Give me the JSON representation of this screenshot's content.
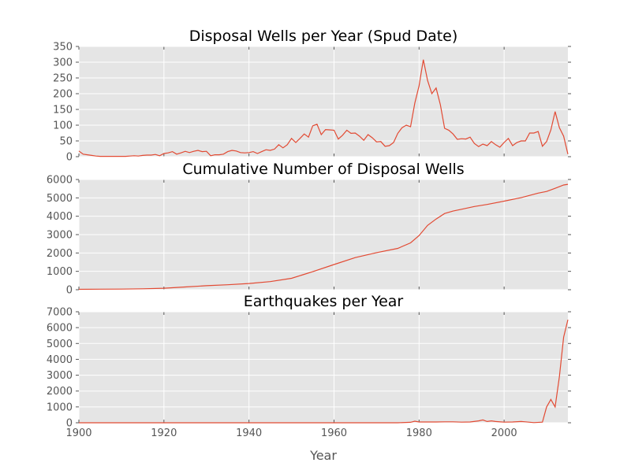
{
  "colors": {
    "background": "#e5e5e5",
    "line": "#e24a33",
    "grid": "#ffffff",
    "tick_text": "#555555"
  },
  "chart_data": [
    {
      "type": "line",
      "title": "Disposal Wells per Year (Spud Date)",
      "xlabel": "",
      "ylabel": "",
      "xlim": [
        1900,
        2015
      ],
      "ylim": [
        0,
        350
      ],
      "yticks": [
        0,
        50,
        100,
        150,
        200,
        250,
        300,
        350
      ],
      "xticks": [
        1900,
        1920,
        1940,
        1960,
        1980,
        2000
      ],
      "show_x_tick_labels": false,
      "grid": true,
      "series": [
        {
          "x": [
            1900,
            1901,
            1902,
            1903,
            1904,
            1905,
            1906,
            1907,
            1908,
            1909,
            1910,
            1911,
            1912,
            1913,
            1914,
            1915,
            1916,
            1917,
            1918,
            1919,
            1920,
            1921,
            1922,
            1923,
            1924,
            1925,
            1926,
            1927,
            1928,
            1929,
            1930,
            1931,
            1932,
            1933,
            1934,
            1935,
            1936,
            1937,
            1938,
            1939,
            1940,
            1941,
            1942,
            1943,
            1944,
            1945,
            1946,
            1947,
            1948,
            1949,
            1950,
            1951,
            1952,
            1953,
            1954,
            1955,
            1956,
            1957,
            1958,
            1959,
            1960,
            1961,
            1962,
            1963,
            1964,
            1965,
            1966,
            1967,
            1968,
            1969,
            1970,
            1971,
            1972,
            1973,
            1974,
            1975,
            1976,
            1977,
            1978,
            1979,
            1980,
            1981,
            1982,
            1983,
            1984,
            1985,
            1986,
            1987,
            1988,
            1989,
            1990,
            1991,
            1992,
            1993,
            1994,
            1995,
            1996,
            1997,
            1998,
            1999,
            2000,
            2001,
            2002,
            2003,
            2004,
            2005,
            2006,
            2007,
            2008,
            2009,
            2010,
            2011,
            2012,
            2013,
            2014,
            2015
          ],
          "y": [
            18,
            8,
            6,
            4,
            2,
            1,
            1,
            1,
            1,
            1,
            1,
            1,
            2,
            3,
            2,
            4,
            5,
            5,
            7,
            3,
            10,
            12,
            16,
            8,
            12,
            17,
            13,
            17,
            20,
            16,
            17,
            3,
            6,
            6,
            8,
            16,
            20,
            18,
            13,
            12,
            13,
            16,
            10,
            16,
            22,
            20,
            24,
            38,
            28,
            38,
            58,
            45,
            58,
            72,
            62,
            98,
            103,
            70,
            86,
            85,
            84,
            56,
            68,
            84,
            74,
            75,
            65,
            52,
            70,
            60,
            47,
            48,
            33,
            35,
            45,
            74,
            92,
            100,
            95,
            170,
            225,
            308,
            242,
            200,
            218,
            165,
            90,
            84,
            72,
            55,
            57,
            56,
            62,
            42,
            32,
            40,
            35,
            48,
            38,
            30,
            45,
            58,
            35,
            45,
            50,
            50,
            75,
            75,
            80,
            33,
            48,
            85,
            143,
            92,
            65,
            8
          ]
        }
      ]
    },
    {
      "type": "line",
      "title": "Cumulative Number of Disposal Wells",
      "xlabel": "",
      "ylabel": "",
      "xlim": [
        1900,
        2015
      ],
      "ylim": [
        0,
        6000
      ],
      "yticks": [
        0,
        1000,
        2000,
        3000,
        4000,
        5000,
        6000
      ],
      "xticks": [
        1900,
        1920,
        1940,
        1960,
        1980,
        2000
      ],
      "show_x_tick_labels": false,
      "grid": true,
      "series": [
        {
          "x": [
            1900,
            1905,
            1910,
            1915,
            1920,
            1925,
            1930,
            1935,
            1940,
            1945,
            1950,
            1955,
            1960,
            1965,
            1970,
            1975,
            1978,
            1980,
            1982,
            1984,
            1986,
            1988,
            1990,
            1993,
            1996,
            2000,
            2004,
            2008,
            2010,
            2012,
            2014,
            2015
          ],
          "y": [
            20,
            30,
            35,
            50,
            80,
            150,
            220,
            270,
            340,
            440,
            620,
            980,
            1370,
            1750,
            2020,
            2250,
            2550,
            2950,
            3500,
            3850,
            4150,
            4280,
            4380,
            4530,
            4640,
            4820,
            5010,
            5260,
            5350,
            5520,
            5700,
            5740
          ]
        }
      ]
    },
    {
      "type": "line",
      "title": "Earthquakes per Year",
      "xlabel": "Year",
      "ylabel": "",
      "xlim": [
        1900,
        2015
      ],
      "ylim": [
        0,
        7000
      ],
      "yticks": [
        0,
        1000,
        2000,
        3000,
        4000,
        5000,
        6000,
        7000
      ],
      "xticks": [
        1900,
        1920,
        1940,
        1960,
        1980,
        2000
      ],
      "show_x_tick_labels": true,
      "grid": true,
      "series": [
        {
          "x": [
            1900,
            1975,
            1978,
            1979,
            1980,
            1982,
            1984,
            1986,
            1988,
            1990,
            1992,
            1994,
            1995,
            1996,
            1997,
            1998,
            2000,
            2002,
            2004,
            2005,
            2007,
            2009,
            2010,
            2011,
            2012,
            2013,
            2014,
            2015
          ],
          "y": [
            0,
            0,
            30,
            100,
            50,
            50,
            50,
            60,
            60,
            40,
            50,
            120,
            180,
            80,
            120,
            80,
            40,
            50,
            80,
            60,
            10,
            40,
            1000,
            1470,
            1000,
            2900,
            5400,
            6500
          ]
        }
      ]
    }
  ]
}
